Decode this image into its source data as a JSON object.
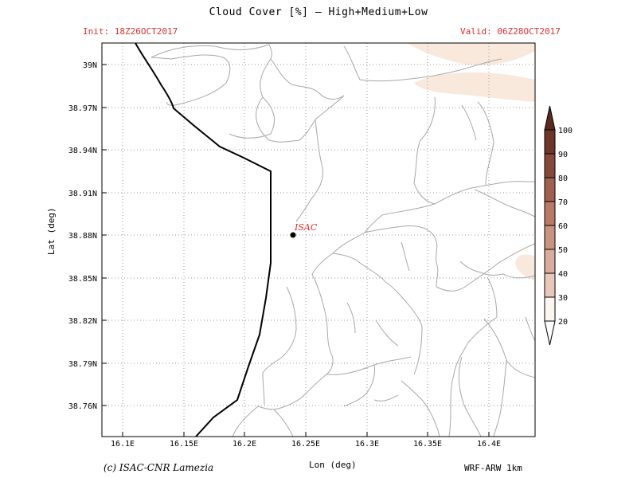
{
  "title": "Cloud Cover [%] — High+Medium+Low",
  "init": "Init: 18Z26OCT2017",
  "valid": "Valid: 06Z28OCT2017",
  "credit": "(c) ISAC-CNR Lamezia",
  "model": "WRF-ARW 1km",
  "axes": {
    "xlabel": "Lon (deg)",
    "ylabel": "Lat (deg)",
    "x_ticks": [
      "16.1E",
      "16.15E",
      "16.2E",
      "16.25E",
      "16.3E",
      "16.35E",
      "16.4E"
    ],
    "y_ticks": [
      "39N",
      "38.97N",
      "38.94N",
      "38.91N",
      "38.88N",
      "38.85N",
      "38.82N",
      "38.79N",
      "38.76N"
    ]
  },
  "station": {
    "label": "ISAC",
    "lon": 16.24,
    "lat": 38.88
  },
  "colorbar": {
    "levels": [
      "20",
      "30",
      "40",
      "50",
      "60",
      "70",
      "80",
      "90",
      "100"
    ],
    "colors": [
      "#fdf5f0",
      "#f6e3da",
      "#e8c8bb",
      "#d9ad9d",
      "#c9937f",
      "#b87a66",
      "#9f6050",
      "#86483b",
      "#6d3629",
      "#5b2a1f"
    ]
  },
  "colors": {
    "header_text": "#e03030",
    "boundary": "#aaaaaa",
    "coast": "#000000",
    "cloud_shade": "#f8e8dc"
  }
}
